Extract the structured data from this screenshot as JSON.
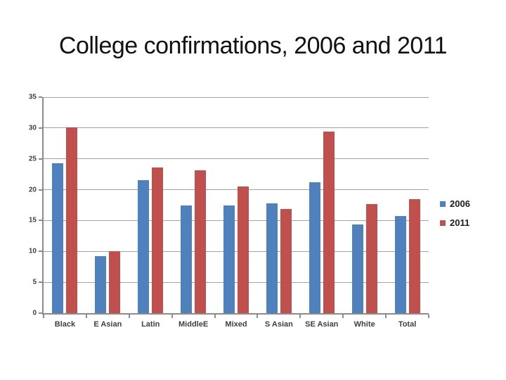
{
  "slide": {
    "title": "College confirmations, 2006 and 2011"
  },
  "colors": {
    "series_2006": "#4F81BD",
    "series_2011": "#C0504D",
    "gridline": "#A3A3A3",
    "axis": "#8C8C8C",
    "category_label": "#3F3F3F",
    "title_text": "#111111",
    "background": "#FFFFFF"
  },
  "chart_data": {
    "type": "bar",
    "title": "College confirmations, 2006 and 2011",
    "categories": [
      "Black",
      "E Asian",
      "Latin",
      "MiddleE",
      "Mixed",
      "S Asian",
      "SE Asian",
      "White",
      "Total"
    ],
    "series": [
      {
        "name": "2006",
        "color": "#4F81BD",
        "values": [
          24.3,
          9.2,
          21.5,
          17.5,
          17.5,
          17.8,
          21.2,
          14.4,
          15.7
        ]
      },
      {
        "name": "2011",
        "color": "#C0504D",
        "values": [
          30.1,
          10.0,
          23.6,
          23.1,
          20.5,
          16.9,
          29.4,
          17.7,
          18.5
        ]
      }
    ],
    "xlabel": "",
    "ylabel": "",
    "ylim": [
      0,
      35
    ],
    "ytick_step": 5,
    "ytick_labels": [
      "0",
      "5",
      "10",
      "15",
      "20",
      "25",
      "30",
      "35"
    ],
    "grid": true,
    "legend_position": "right"
  }
}
